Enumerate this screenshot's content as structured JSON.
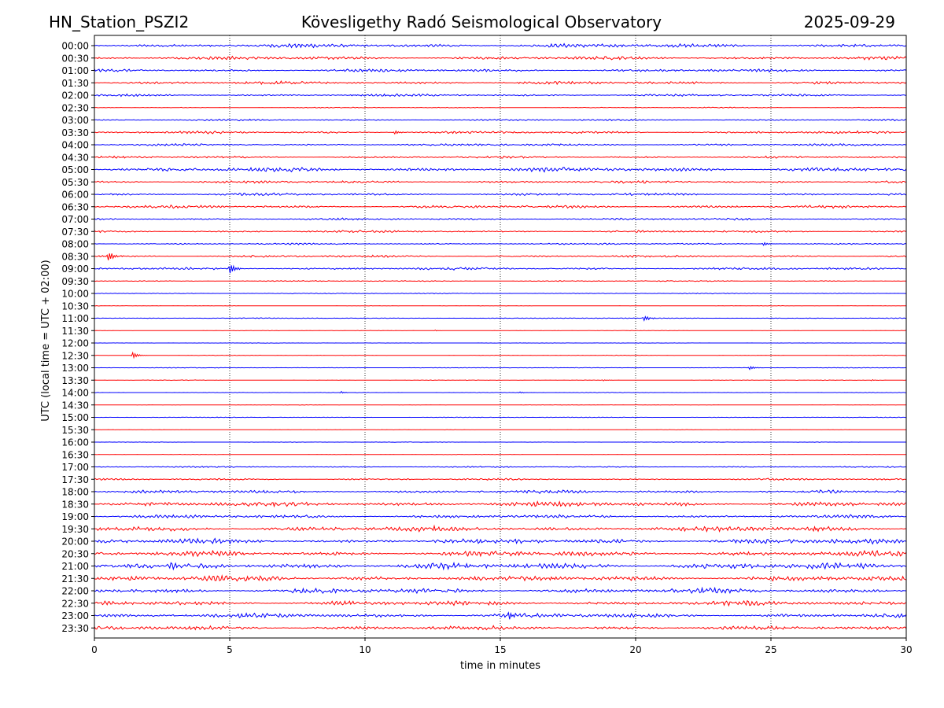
{
  "header": {
    "station": "HN_Station_PSZI2",
    "observatory": "Kövesligethy Radó Seismological Observatory",
    "date": "2025-09-29"
  },
  "colors": {
    "even_trace": "#0000ff",
    "odd_trace": "#ff0000",
    "grid": "#000000",
    "axis": "#000000"
  },
  "chart_data": {
    "type": "line",
    "description_kind": "helicorder",
    "xlabel": "time in minutes",
    "ylabel": "UTC (local time = UTC + 02:00)",
    "xlim": [
      0,
      30
    ],
    "xticks": [
      0,
      5,
      10,
      15,
      20,
      25,
      30
    ],
    "vertical_gridlines": [
      5,
      10,
      15,
      20,
      25
    ],
    "rows": [
      "00:00",
      "00:30",
      "01:00",
      "01:30",
      "02:00",
      "02:30",
      "03:00",
      "03:30",
      "04:00",
      "04:30",
      "05:00",
      "05:30",
      "06:00",
      "06:30",
      "07:00",
      "07:30",
      "08:00",
      "08:30",
      "09:00",
      "09:30",
      "10:00",
      "10:30",
      "11:00",
      "11:30",
      "12:00",
      "12:30",
      "13:00",
      "13:30",
      "14:00",
      "14:30",
      "15:00",
      "15:30",
      "16:00",
      "16:30",
      "17:00",
      "17:30",
      "18:00",
      "18:30",
      "19:00",
      "19:30",
      "20:00",
      "20:30",
      "21:00",
      "21:30",
      "22:00",
      "22:30",
      "23:00",
      "23:30"
    ],
    "noise_level": [
      0.55,
      0.45,
      0.4,
      0.42,
      0.32,
      0.12,
      0.22,
      0.35,
      0.3,
      0.3,
      0.6,
      0.35,
      0.35,
      0.4,
      0.28,
      0.3,
      0.22,
      0.3,
      0.35,
      0.15,
      0.12,
      0.05,
      0.12,
      0.06,
      0.05,
      0.07,
      0.07,
      0.07,
      0.06,
      0.05,
      0.08,
      0.06,
      0.05,
      0.06,
      0.18,
      0.25,
      0.45,
      0.65,
      0.45,
      0.7,
      0.7,
      0.7,
      0.85,
      0.75,
      0.7,
      0.65,
      0.6,
      0.55
    ],
    "events": [
      {
        "row": "08:30",
        "minute": 0.5,
        "amplitude": 2.4
      },
      {
        "row": "09:00",
        "minute": 5.0,
        "amplitude": 1.5
      },
      {
        "row": "11:00",
        "minute": 20.3,
        "amplitude": 1.0
      },
      {
        "row": "11:30",
        "minute": 12.6,
        "amplitude": 0.5
      },
      {
        "row": "12:30",
        "minute": 1.4,
        "amplitude": 0.9
      },
      {
        "row": "13:00",
        "minute": 24.2,
        "amplitude": 0.5
      },
      {
        "row": "13:30",
        "minute": 18.8,
        "amplitude": 0.4
      },
      {
        "row": "13:30",
        "minute": 28.7,
        "amplitude": 0.5
      },
      {
        "row": "14:00",
        "minute": 9.1,
        "amplitude": 0.6
      },
      {
        "row": "14:00",
        "minute": 15.7,
        "amplitude": 0.6
      },
      {
        "row": "19:30",
        "minute": 26.6,
        "amplitude": 1.3
      },
      {
        "row": "23:00",
        "minute": 15.3,
        "amplitude": 1.2
      },
      {
        "row": "08:00",
        "minute": 24.7,
        "amplitude": 0.6
      },
      {
        "row": "03:30",
        "minute": 11.1,
        "amplitude": 0.5
      }
    ]
  }
}
